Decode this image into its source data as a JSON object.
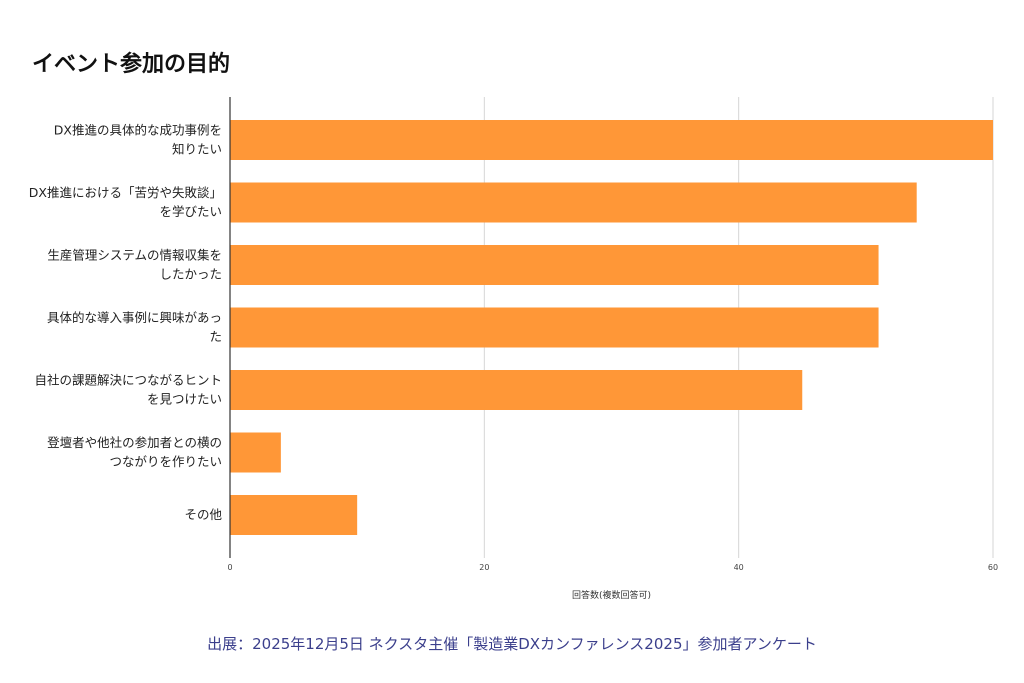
{
  "chart_data": {
    "type": "bar",
    "orientation": "horizontal",
    "title": "イベント参加の目的",
    "categories": [
      [
        "DX推進の具体的な成功事例を",
        "知りたい"
      ],
      [
        "DX推進における「苦労や失敗談」",
        "を学びたい"
      ],
      [
        "生産管理システムの情報収集を",
        "したかった"
      ],
      [
        "具体的な導入事例に興味があっ",
        "た"
      ],
      [
        "自社の課題解決につながるヒント",
        "を見つけたい"
      ],
      [
        "登壇者や他社の参加者との横の",
        "つながりを作りたい"
      ],
      [
        "その他"
      ]
    ],
    "values": [
      60,
      54,
      51,
      51,
      45,
      4,
      10
    ],
    "xlabel": "回答数(複数回答可)",
    "ylabel": "",
    "xlim": [
      0,
      60
    ],
    "xticks": [
      "0",
      "20",
      "40",
      "60"
    ],
    "grid": true,
    "bar_color": "#ff9737"
  },
  "source": "出展：2025年12月5日 ネクスタ主催「製造業DXカンファレンス2025」参加者アンケート"
}
